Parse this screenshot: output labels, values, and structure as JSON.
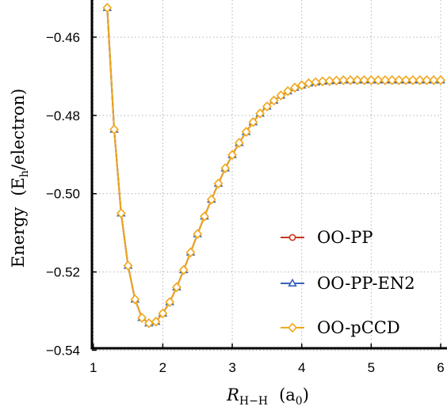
{
  "chart_data": {
    "type": "line",
    "xlabel": {
      "main": "R",
      "sub": "H−H",
      "unit": "(a",
      "unit_sub": "0",
      "unit_close": ")"
    },
    "ylabel": {
      "main": "Energy",
      "unit_open": "(E",
      "unit_sub": "h",
      "unit_rest": "/electron)"
    },
    "xlim": [
      0.98,
      6.0
    ],
    "ylim": [
      -0.5395,
      -0.4505
    ],
    "x_ticks": [
      1,
      2,
      3,
      4,
      5,
      6
    ],
    "x_tick_labels": [
      "1",
      "2",
      "3",
      "4",
      "5",
      "6"
    ],
    "y_ticks": [
      -0.46,
      -0.48,
      -0.5,
      -0.52,
      -0.54
    ],
    "y_tick_labels": [
      "−0.46",
      "−0.48",
      "−0.50",
      "−0.52",
      "−0.54"
    ],
    "grid": true,
    "legend_position": "lower-right",
    "x": [
      1.2,
      1.3,
      1.4,
      1.5,
      1.6,
      1.7,
      1.8,
      1.9,
      2.0,
      2.1,
      2.2,
      2.3,
      2.4,
      2.5,
      2.6,
      2.7,
      2.8,
      2.9,
      3.0,
      3.1,
      3.2,
      3.3,
      3.4,
      3.5,
      3.6,
      3.7,
      3.8,
      3.9,
      4.0,
      4.1,
      4.2,
      4.3,
      4.4,
      4.5,
      4.6,
      4.7,
      4.8,
      4.9,
      5.0,
      5.1,
      5.2,
      5.3,
      5.4,
      5.5,
      5.6,
      5.7,
      5.8,
      5.9,
      6.0
    ],
    "series": [
      {
        "name": "OO-PP",
        "color": "#c8361c",
        "marker": "circle",
        "values": [
          -0.4525,
          -0.4836,
          -0.505,
          -0.5184,
          -0.527,
          -0.5317,
          -0.5331,
          -0.5327,
          -0.5306,
          -0.5277,
          -0.5239,
          -0.5195,
          -0.515,
          -0.5103,
          -0.5058,
          -0.5015,
          -0.4974,
          -0.4935,
          -0.4901,
          -0.487,
          -0.4842,
          -0.4817,
          -0.4795,
          -0.4777,
          -0.4762,
          -0.4749,
          -0.4738,
          -0.4729,
          -0.4723,
          -0.4718,
          -0.4715,
          -0.4713,
          -0.4712,
          -0.4711,
          -0.471,
          -0.471,
          -0.471,
          -0.471,
          -0.471,
          -0.471,
          -0.471,
          -0.471,
          -0.471,
          -0.471,
          -0.471,
          -0.471,
          -0.471,
          -0.471,
          -0.471
        ]
      },
      {
        "name": "OO-PP-EN2",
        "color": "#3a62b8",
        "marker": "triangle",
        "values": [
          -0.4525,
          -0.4836,
          -0.505,
          -0.5184,
          -0.527,
          -0.5317,
          -0.5331,
          -0.5327,
          -0.5306,
          -0.5277,
          -0.5239,
          -0.5195,
          -0.515,
          -0.5103,
          -0.5058,
          -0.5015,
          -0.4974,
          -0.4935,
          -0.4901,
          -0.487,
          -0.4842,
          -0.4817,
          -0.4795,
          -0.4777,
          -0.4762,
          -0.4749,
          -0.4738,
          -0.4729,
          -0.4723,
          -0.4718,
          -0.4715,
          -0.4713,
          -0.4712,
          -0.4711,
          -0.471,
          -0.471,
          -0.471,
          -0.471,
          -0.471,
          -0.471,
          -0.471,
          -0.471,
          -0.471,
          -0.471,
          -0.471,
          -0.471,
          -0.471,
          -0.471,
          -0.471
        ]
      },
      {
        "name": "OO-pCCD",
        "color": "#f0a81c",
        "marker": "diamond",
        "values": [
          -0.4525,
          -0.4836,
          -0.505,
          -0.5184,
          -0.527,
          -0.5317,
          -0.5331,
          -0.5327,
          -0.5306,
          -0.5277,
          -0.5239,
          -0.5195,
          -0.515,
          -0.5103,
          -0.5058,
          -0.5015,
          -0.4974,
          -0.4935,
          -0.4901,
          -0.487,
          -0.4842,
          -0.4817,
          -0.4795,
          -0.4777,
          -0.4762,
          -0.4749,
          -0.4738,
          -0.4729,
          -0.4723,
          -0.4718,
          -0.4715,
          -0.4713,
          -0.4712,
          -0.4711,
          -0.471,
          -0.471,
          -0.471,
          -0.471,
          -0.471,
          -0.471,
          -0.471,
          -0.471,
          -0.471,
          -0.471,
          -0.471,
          -0.471,
          -0.471,
          -0.471,
          -0.471
        ]
      }
    ]
  }
}
